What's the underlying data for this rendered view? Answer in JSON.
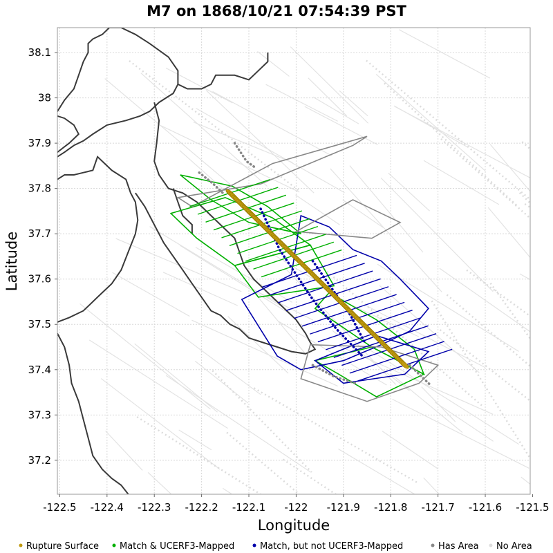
{
  "chart_data": {
    "type": "map",
    "title": "M7 on 1868/10/21 07:54:39 PST",
    "xlabel": "Longitude",
    "ylabel": "Latitude",
    "xlim": [
      -122.505,
      -121.505
    ],
    "ylim": [
      37.125,
      38.155
    ],
    "x_ticks": [
      -122.5,
      -122.4,
      -122.3,
      -122.2,
      -122.1,
      -122.0,
      -121.9,
      -121.8,
      -121.7,
      -121.6,
      -121.5
    ],
    "x_tick_labels": [
      "-122.5",
      "-122.4",
      "-122.3",
      "-122.2",
      "-122.1",
      "-122",
      "-121.9",
      "-121.8",
      "-121.7",
      "-121.6",
      "-121.5"
    ],
    "y_ticks": [
      37.2,
      37.3,
      37.4,
      37.5,
      37.6,
      37.7,
      37.8,
      37.9,
      38.0,
      38.1
    ],
    "y_tick_labels": [
      "37.2",
      "37.3",
      "37.4",
      "37.5",
      "37.6",
      "37.7",
      "37.8",
      "37.9",
      "38",
      "38.1"
    ],
    "grid": true,
    "legend_position": "bottom",
    "legend": [
      {
        "label": "Rupture Surface",
        "color": "#c09a10"
      },
      {
        "label": "Match & UCERF3-Mapped",
        "color": "#00b000"
      },
      {
        "label": "Match, but not UCERF3-Mapped",
        "color": "#0000aa"
      },
      {
        "label": "Has Area",
        "color": "#888888"
      },
      {
        "label": "No Area",
        "color": "#dddddd"
      }
    ],
    "rupture_surface": {
      "color": "#c09a10",
      "trace": [
        [
          -122.14,
          37.79
        ],
        [
          -121.77,
          37.41
        ]
      ]
    },
    "coastline": [
      [
        [
          -122.505,
          37.82
        ],
        [
          -122.49,
          37.83
        ],
        [
          -122.47,
          37.83
        ],
        [
          -122.45,
          37.835
        ],
        [
          -122.43,
          37.84
        ],
        [
          -122.42,
          37.87
        ],
        [
          -122.39,
          37.84
        ],
        [
          -122.36,
          37.82
        ],
        [
          -122.35,
          37.79
        ],
        [
          -122.34,
          37.77
        ],
        [
          -122.335,
          37.73
        ],
        [
          -122.34,
          37.7
        ],
        [
          -122.355,
          37.66
        ],
        [
          -122.37,
          37.62
        ],
        [
          -122.39,
          37.59
        ],
        [
          -122.42,
          37.56
        ],
        [
          -122.45,
          37.53
        ],
        [
          -122.48,
          37.515
        ],
        [
          -122.505,
          37.505
        ]
      ],
      [
        [
          -122.505,
          37.48
        ],
        [
          -122.49,
          37.45
        ],
        [
          -122.48,
          37.41
        ],
        [
          -122.475,
          37.37
        ],
        [
          -122.46,
          37.33
        ],
        [
          -122.45,
          37.29
        ],
        [
          -122.44,
          37.25
        ],
        [
          -122.43,
          37.21
        ],
        [
          -122.41,
          37.18
        ],
        [
          -122.39,
          37.16
        ],
        [
          -122.37,
          37.145
        ],
        [
          -122.355,
          37.125
        ]
      ],
      [
        [
          -122.505,
          37.97
        ],
        [
          -122.49,
          37.995
        ],
        [
          -122.47,
          38.02
        ],
        [
          -122.46,
          38.05
        ],
        [
          -122.45,
          38.08
        ],
        [
          -122.44,
          38.1
        ],
        [
          -122.44,
          38.12
        ],
        [
          -122.43,
          38.13
        ],
        [
          -122.41,
          38.14
        ],
        [
          -122.395,
          38.155
        ],
        [
          -122.37,
          38.155
        ],
        [
          -122.34,
          38.14
        ],
        [
          -122.31,
          38.12
        ],
        [
          -122.27,
          38.09
        ],
        [
          -122.25,
          38.06
        ],
        [
          -122.25,
          38.03
        ],
        [
          -122.26,
          38.01
        ],
        [
          -122.29,
          37.99
        ],
        [
          -122.31,
          37.97
        ],
        [
          -122.33,
          37.96
        ],
        [
          -122.36,
          37.95
        ],
        [
          -122.4,
          37.94
        ],
        [
          -122.43,
          37.92
        ],
        [
          -122.45,
          37.905
        ],
        [
          -122.47,
          37.895
        ],
        [
          -122.49,
          37.88
        ],
        [
          -122.505,
          37.87
        ]
      ],
      [
        [
          -122.505,
          37.88
        ],
        [
          -122.48,
          37.9
        ],
        [
          -122.46,
          37.92
        ],
        [
          -122.47,
          37.94
        ],
        [
          -122.49,
          37.955
        ],
        [
          -122.505,
          37.96
        ]
      ],
      [
        [
          -122.25,
          38.03
        ],
        [
          -122.23,
          38.02
        ],
        [
          -122.2,
          38.02
        ],
        [
          -122.18,
          38.03
        ],
        [
          -122.17,
          38.05
        ],
        [
          -122.13,
          38.05
        ],
        [
          -122.1,
          38.04
        ],
        [
          -122.08,
          38.06
        ],
        [
          -122.06,
          38.08
        ],
        [
          -122.06,
          38.1
        ]
      ],
      [
        [
          -122.3,
          37.99
        ],
        [
          -122.29,
          37.95
        ],
        [
          -122.295,
          37.9
        ],
        [
          -122.3,
          37.86
        ],
        [
          -122.29,
          37.83
        ],
        [
          -122.27,
          37.8
        ],
        [
          -122.24,
          37.79
        ],
        [
          -122.21,
          37.77
        ],
        [
          -122.19,
          37.75
        ],
        [
          -122.16,
          37.72
        ],
        [
          -122.13,
          37.69
        ],
        [
          -122.12,
          37.66
        ],
        [
          -122.11,
          37.63
        ],
        [
          -122.09,
          37.6
        ],
        [
          -122.06,
          37.57
        ],
        [
          -122.03,
          37.54
        ],
        [
          -122.0,
          37.51
        ],
        [
          -121.98,
          37.48
        ],
        [
          -121.97,
          37.46
        ],
        [
          -121.96,
          37.445
        ],
        [
          -121.98,
          37.435
        ],
        [
          -122.01,
          37.44
        ],
        [
          -122.04,
          37.45
        ],
        [
          -122.07,
          37.46
        ],
        [
          -122.1,
          37.47
        ],
        [
          -122.12,
          37.49
        ],
        [
          -122.14,
          37.5
        ],
        [
          -122.16,
          37.52
        ],
        [
          -122.18,
          37.53
        ],
        [
          -122.2,
          37.56
        ],
        [
          -122.22,
          37.59
        ],
        [
          -122.24,
          37.62
        ],
        [
          -122.26,
          37.65
        ],
        [
          -122.28,
          37.68
        ],
        [
          -122.3,
          37.72
        ],
        [
          -122.32,
          37.76
        ],
        [
          -122.34,
          37.79
        ]
      ],
      [
        [
          -122.26,
          37.8
        ],
        [
          -122.25,
          37.77
        ],
        [
          -122.24,
          37.74
        ],
        [
          -122.22,
          37.72
        ],
        [
          -122.22,
          37.7
        ]
      ]
    ],
    "rupture_patches": [
      {
        "category": "Match & UCERF3-Mapped",
        "color": "#00b000",
        "polygon": [
          [
            -122.245,
            37.83
          ],
          [
            -122.135,
            37.805
          ],
          [
            -122.06,
            37.76
          ],
          [
            -121.99,
            37.7
          ],
          [
            -122.1,
            37.725
          ],
          [
            -122.18,
            37.775
          ]
        ]
      },
      {
        "category": "Match & UCERF3-Mapped",
        "color": "#00b000",
        "polygon": [
          [
            -122.265,
            37.745
          ],
          [
            -122.15,
            37.78
          ],
          [
            -122.05,
            37.735
          ],
          [
            -121.97,
            37.675
          ],
          [
            -122.13,
            37.63
          ],
          [
            -122.21,
            37.69
          ]
        ]
      },
      {
        "category": "Match & UCERF3-Mapped",
        "color": "#00b000",
        "polygon": [
          [
            -122.13,
            37.63
          ],
          [
            -121.97,
            37.675
          ],
          [
            -121.92,
            37.585
          ],
          [
            -122.08,
            37.56
          ]
        ]
      },
      {
        "category": "Match & UCERF3-Mapped",
        "color": "#00b000",
        "polygon": [
          [
            -121.96,
            37.535
          ],
          [
            -121.84,
            37.45
          ],
          [
            -121.73,
            37.39
          ],
          [
            -121.75,
            37.445
          ],
          [
            -121.83,
            37.51
          ],
          [
            -121.93,
            37.57
          ]
        ]
      },
      {
        "category": "Match & UCERF3-Mapped",
        "color": "#00b000",
        "polygon": [
          [
            -121.96,
            37.42
          ],
          [
            -121.84,
            37.45
          ],
          [
            -121.73,
            37.39
          ],
          [
            -121.83,
            37.34
          ],
          [
            -121.91,
            37.39
          ]
        ]
      },
      {
        "category": "Match, but not UCERF3-Mapped",
        "color": "#0000aa",
        "polygon": [
          [
            -122.115,
            37.555
          ],
          [
            -122.01,
            37.61
          ],
          [
            -121.99,
            37.74
          ],
          [
            -121.93,
            37.715
          ],
          [
            -121.88,
            37.665
          ],
          [
            -121.82,
            37.64
          ],
          [
            -121.78,
            37.6
          ],
          [
            -121.72,
            37.535
          ],
          [
            -121.76,
            37.485
          ],
          [
            -121.82,
            37.455
          ],
          [
            -121.9,
            37.42
          ],
          [
            -121.99,
            37.4
          ],
          [
            -122.04,
            37.43
          ]
        ]
      },
      {
        "category": "Match, but not UCERF3-Mapped",
        "color": "#0000aa",
        "polygon": [
          [
            -121.96,
            37.42
          ],
          [
            -121.83,
            37.475
          ],
          [
            -121.72,
            37.44
          ],
          [
            -121.77,
            37.39
          ],
          [
            -121.9,
            37.37
          ]
        ]
      },
      {
        "category": "Has Area",
        "color": "#888888",
        "polygon": [
          [
            -122.25,
            37.78
          ],
          [
            -122.075,
            37.81
          ],
          [
            -121.88,
            37.895
          ],
          [
            -121.85,
            37.915
          ],
          [
            -122.05,
            37.855
          ],
          [
            -122.22,
            37.76
          ]
        ]
      },
      {
        "category": "Has Area",
        "color": "#888888",
        "polygon": [
          [
            -122.0,
            37.705
          ],
          [
            -121.88,
            37.775
          ],
          [
            -121.78,
            37.725
          ],
          [
            -121.84,
            37.69
          ]
        ]
      },
      {
        "category": "Has Area",
        "color": "#888888",
        "polygon": [
          [
            -121.99,
            37.38
          ],
          [
            -121.85,
            37.33
          ],
          [
            -121.74,
            37.37
          ],
          [
            -121.7,
            37.41
          ],
          [
            -121.82,
            37.45
          ],
          [
            -121.97,
            37.455
          ]
        ]
      }
    ],
    "nearby_faults": [
      [
        [
          -122.205,
          37.835
        ],
        [
          -122.175,
          37.81
        ],
        [
          -122.155,
          37.79
        ]
      ],
      [
        [
          -122.075,
          37.755
        ],
        [
          -122.035,
          37.665
        ],
        [
          -122.0,
          37.61
        ],
        [
          -121.965,
          37.555
        ],
        [
          -121.915,
          37.49
        ],
        [
          -121.86,
          37.43
        ]
      ],
      [
        [
          -121.965,
          37.64
        ],
        [
          -121.925,
          37.58
        ],
        [
          -121.885,
          37.52
        ],
        [
          -121.855,
          37.46
        ]
      ],
      [
        [
          -122.13,
          37.9
        ],
        [
          -122.105,
          37.86
        ],
        [
          -122.085,
          37.845
        ]
      ],
      [
        [
          -121.76,
          37.41
        ],
        [
          -121.715,
          37.365
        ]
      ],
      [
        [
          -121.965,
          37.41
        ],
        [
          -121.92,
          37.385
        ],
        [
          -121.875,
          37.37
        ]
      ]
    ],
    "series": [
      {
        "name": "Rupture Surface"
      },
      {
        "name": "Match & UCERF3-Mapped"
      },
      {
        "name": "Match, but not UCERF3-Mapped"
      },
      {
        "name": "Has Area"
      },
      {
        "name": "No Area"
      }
    ]
  }
}
